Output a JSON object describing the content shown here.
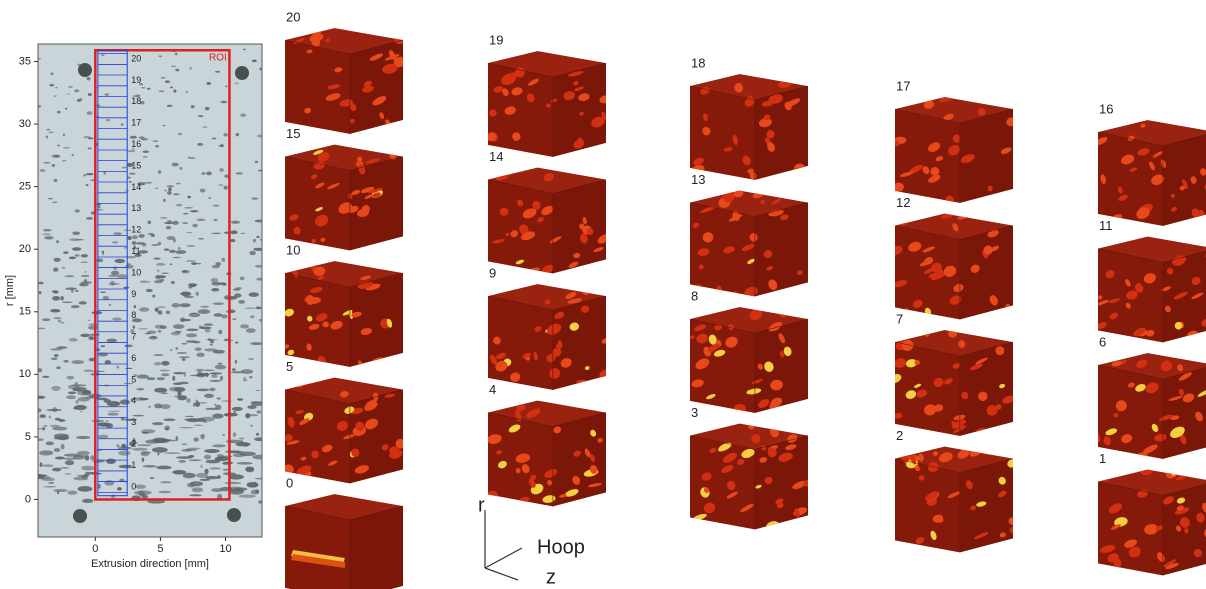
{
  "chart_data": {
    "type": "image",
    "xlabel": "Extrusion direction [mm]",
    "ylabel": "r [mm]",
    "xlim": [
      -4.4,
      12.8
    ],
    "ylim": [
      -3,
      36.4
    ],
    "xticks": [
      0,
      5,
      10
    ],
    "yticks": [
      0,
      5,
      10,
      15,
      20,
      25,
      30,
      35
    ],
    "roi_label": "ROI",
    "slice_labels": [
      "0",
      "1",
      "2",
      "3",
      "4",
      "5",
      "6",
      "7",
      "8",
      "9",
      "10",
      "11",
      "12",
      "13",
      "14",
      "15",
      "16",
      "17",
      "18",
      "19",
      "20"
    ]
  },
  "cube_columns": [
    [
      "20",
      "15",
      "10",
      "5",
      "0"
    ],
    [
      "19",
      "14",
      "9",
      "4"
    ],
    [
      "18",
      "13",
      "8",
      "3"
    ],
    [
      "17",
      "12",
      "7",
      "2"
    ],
    [
      "16",
      "11",
      "6",
      "1"
    ]
  ],
  "orientation": {
    "r": "r",
    "hoop": "Hoop",
    "z": "z"
  }
}
